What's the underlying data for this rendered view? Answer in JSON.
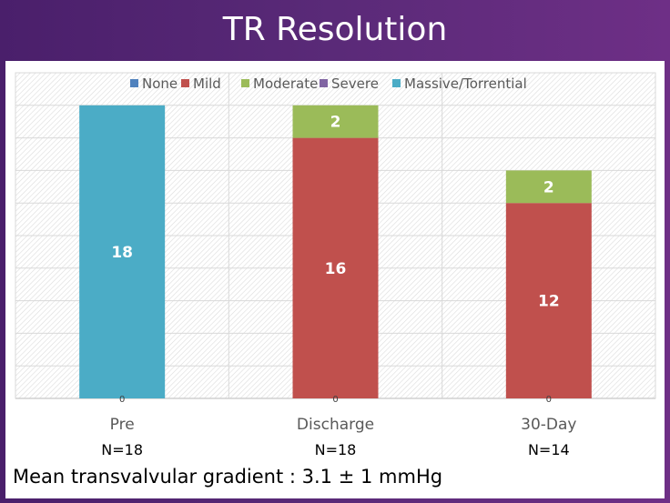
{
  "slide": {
    "title": "TR Resolution",
    "footnote": "Mean transvalvular gradient : 3.1 ± 1 mmHg"
  },
  "chart_data": {
    "type": "bar",
    "stacked": true,
    "categories": [
      "Pre",
      "Discharge",
      "30-Day"
    ],
    "category_sublabels": [
      "N=18",
      "N=18",
      "N=14"
    ],
    "series": [
      {
        "name": "None",
        "color": "#4f81bd",
        "values": [
          0,
          0,
          0
        ]
      },
      {
        "name": "Mild",
        "color": "#c0504d",
        "values": [
          0,
          16,
          12
        ]
      },
      {
        "name": "Moderate",
        "color": "#9bbb59",
        "values": [
          0,
          2,
          2
        ]
      },
      {
        "name": "Severe",
        "color": "#8064a2",
        "values": [
          0,
          0,
          0
        ]
      },
      {
        "name": "Massive/Torrential",
        "color": "#4bacc6",
        "values": [
          18,
          0,
          0
        ]
      }
    ],
    "ylim": [
      0,
      20
    ],
    "grid": true,
    "legend": "top",
    "y_axis_labels_shown": false
  }
}
